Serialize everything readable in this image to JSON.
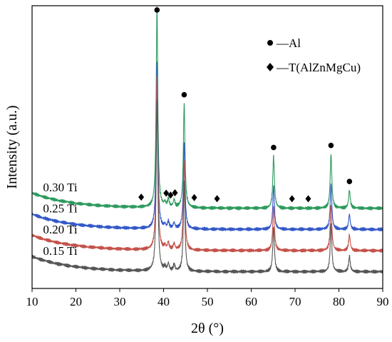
{
  "chart_data": {
    "type": "line",
    "xlabel": "2θ (°)",
    "ylabel": "Intensity (a.u.)",
    "xlim": [
      10,
      90
    ],
    "x_ticks": [
      10,
      20,
      30,
      40,
      50,
      60,
      70,
      80,
      90
    ],
    "y_ticks_shown": false,
    "grid": false,
    "legend_position": "top-right",
    "legend": [
      {
        "marker": "circle",
        "label": "—Al"
      },
      {
        "marker": "diamond",
        "label": "—T(AlZnMgCu)"
      }
    ],
    "peaks": [
      {
        "x": 38.5,
        "h": 1.0
      },
      {
        "x": 44.7,
        "h": 0.52
      },
      {
        "x": 65.1,
        "h": 0.26
      },
      {
        "x": 78.2,
        "h": 0.27
      },
      {
        "x": 82.4,
        "h": 0.09
      },
      {
        "x": 41.1,
        "h": 0.04
      },
      {
        "x": 42.4,
        "h": 0.035
      },
      {
        "x": 40.3,
        "h": 0.02
      }
    ],
    "series": [
      {
        "name": "0.30 Ti",
        "color": "#2e9b5e",
        "offset": 0.72,
        "amp": 0.72
      },
      {
        "name": "0.25 Ti",
        "color": "#3459c8",
        "offset": 0.53,
        "amp": 0.6
      },
      {
        "name": "0.20 Ti",
        "color": "#c4524a",
        "offset": 0.34,
        "amp": 0.62
      },
      {
        "name": "0.15 Ti",
        "color": "#555555",
        "offset": 0.15,
        "amp": 0.62
      }
    ],
    "al_markers": [
      38.5,
      44.7,
      65.1,
      78.2,
      82.4
    ],
    "t_markers": [
      34.9,
      40.6,
      41.6,
      42.6,
      47.0,
      52.2,
      69.3,
      73.0
    ]
  }
}
